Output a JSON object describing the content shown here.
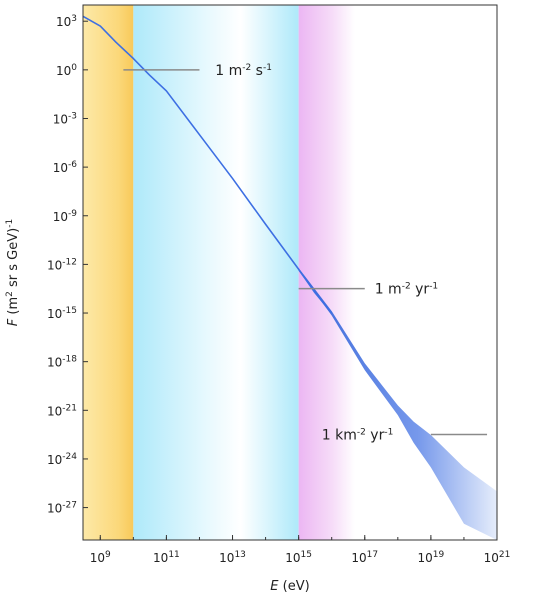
{
  "chart_data": {
    "type": "line",
    "scale": {
      "x": "log10",
      "y": "log10"
    },
    "xlim": [
      300000000.0,
      1e+21
    ],
    "ylim": [
      1e-29,
      10000.0
    ],
    "x_ticks": [
      1000000000.0,
      100000000000.0,
      10000000000000.0,
      1000000000000000.0,
      1e+17,
      1e+19,
      1e+21
    ],
    "y_ticks": [
      1000.0,
      1.0,
      0.001,
      1e-06,
      1e-09,
      1e-12,
      1e-15,
      1e-18,
      1e-21,
      1e-24,
      1e-27
    ],
    "x_tick_labels": [
      {
        "base": "10",
        "exp": "9"
      },
      {
        "base": "10",
        "exp": "11"
      },
      {
        "base": "10",
        "exp": "13"
      },
      {
        "base": "10",
        "exp": "15"
      },
      {
        "base": "10",
        "exp": "17"
      },
      {
        "base": "10",
        "exp": "19"
      },
      {
        "base": "10",
        "exp": "21"
      }
    ],
    "y_tick_labels": [
      {
        "base": "10",
        "exp": "3"
      },
      {
        "base": "10",
        "exp": "0"
      },
      {
        "base": "10",
        "exp": "-3"
      },
      {
        "base": "10",
        "exp": "-6"
      },
      {
        "base": "10",
        "exp": "-9"
      },
      {
        "base": "10",
        "exp": "-12"
      },
      {
        "base": "10",
        "exp": "-15"
      },
      {
        "base": "10",
        "exp": "-18"
      },
      {
        "base": "10",
        "exp": "-21"
      },
      {
        "base": "10",
        "exp": "-24"
      },
      {
        "base": "10",
        "exp": "-27"
      }
    ],
    "xlabel": {
      "italic": "E",
      "rest": " (eV)"
    },
    "ylabel": {
      "italic": "F",
      "p1": " (m",
      "sup1": "2",
      "p2": " sr s GeV)",
      "sup2": "-1"
    },
    "bands": [
      {
        "x_start": 300000000.0,
        "x_end": 10000000000.0,
        "color": "#fbd87a"
      },
      {
        "x_start": 10000000000.0,
        "x_end": 1000000000000000.0,
        "color": "#bfeefb"
      },
      {
        "x_start": 1000000000000000.0,
        "x_end": 5e+16,
        "color": "#f0c0f5"
      }
    ],
    "series": [
      {
        "color": "#3d6fe3",
        "points": [
          [
            300000000.0,
            2000
          ],
          [
            1000000000.0,
            500
          ],
          [
            3000000000.0,
            50
          ],
          [
            10000000000.0,
            5
          ],
          [
            30000000000.0,
            0.5
          ],
          [
            100000000000.0,
            0.05
          ],
          [
            1000000000000.0,
            0.0001
          ],
          [
            10000000000000.0,
            2e-07
          ],
          [
            100000000000000.0,
            3e-10
          ],
          [
            1000000000000000.0,
            5e-13
          ],
          [
            3000000000000000.0,
            2e-14
          ],
          [
            1e+16,
            1e-15
          ],
          [
            1e+17,
            5e-19
          ],
          [
            1e+18,
            1e-21
          ],
          [
            3e+18,
            5e-23
          ],
          [
            1e+19,
            3e-24
          ],
          [
            1e+20,
            1e-26
          ],
          [
            1e+21,
            1e-28
          ]
        ],
        "uncertainty_band": [
          [
            1000000000000000.0,
            6e-13,
            4e-13
          ],
          [
            1e+16,
            1.3e-15,
            7e-16
          ],
          [
            1e+17,
            8e-19,
            3e-19
          ],
          [
            1e+18,
            2e-21,
            5e-22
          ],
          [
            3e+18,
            2e-22,
            1e-23
          ],
          [
            1e+19,
            3e-23,
            3e-25
          ],
          [
            1e+20,
            3e-25,
            1e-28
          ],
          [
            1e+21,
            1e-26,
            1e-29
          ]
        ]
      }
    ],
    "annotations": [
      {
        "flux": 1,
        "line_x": [
          5000000000.0,
          1000000000000.0
        ],
        "label_x": 3000000000000.0,
        "pre": "1 m",
        "sup1": "-2",
        "mid": " s",
        "sup2": "-1"
      },
      {
        "flux": 3.2e-14,
        "line_x": [
          1000000000000000.0,
          1e+17
        ],
        "label_x": 2e+17,
        "pre": "1 m",
        "sup1": "-2",
        "mid": " yr",
        "sup2": "-1"
      },
      {
        "flux": 3.2e-23,
        "line_x": [
          1e+19,
          5e+20
        ],
        "label_x": 5000000000000000.0,
        "pre": "1 km",
        "sup1": "-2",
        "mid": " yr",
        "sup2": "-1"
      }
    ]
  }
}
